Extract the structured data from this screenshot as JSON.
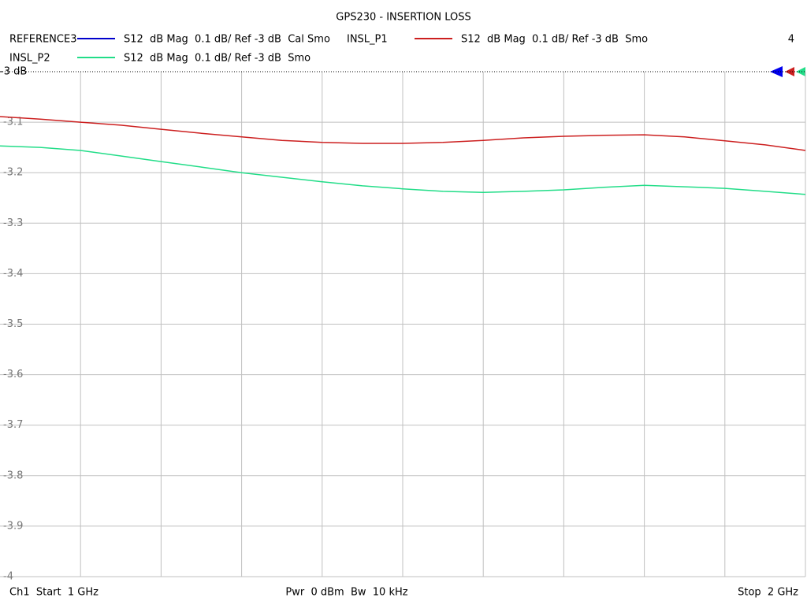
{
  "chart_data": {
    "type": "line",
    "title": "GPS230 - INSERTION LOSS",
    "x": [
      1.0,
      1.05,
      1.1,
      1.15,
      1.2,
      1.25,
      1.3,
      1.35,
      1.4,
      1.45,
      1.5,
      1.55,
      1.6,
      1.65,
      1.7,
      1.75,
      1.8,
      1.85,
      1.9,
      1.95,
      2.0
    ],
    "xlim": [
      1,
      2
    ],
    "xticks": [
      1.1,
      1.2,
      1.3,
      1.4,
      1.5,
      1.6,
      1.7,
      1.8,
      1.9,
      2
    ],
    "ylim": [
      -4,
      -3
    ],
    "yticks": [
      {
        "value": -3,
        "label": "-3 dB"
      },
      -3.1,
      -3.2,
      -3.3,
      -3.4,
      -3.5,
      -3.6,
      -3.7,
      -3.8,
      -3.9,
      -4
    ],
    "grid": true,
    "channel_number": "4",
    "series": [
      {
        "name": "REFERENCE3",
        "description": "S12  dB Mag  0.1 dB/ Ref -3 dB  Cal Smo",
        "color": "#0000cc",
        "values": [
          null,
          null,
          null,
          null,
          null,
          null,
          null,
          null,
          null,
          null,
          null,
          null,
          null,
          null,
          null,
          null,
          null,
          null,
          null,
          null,
          null
        ]
      },
      {
        "name": "INSL_P1",
        "description": "S12  dB Mag  0.1 dB/ Ref -3 dB  Smo",
        "color": "#cc1f1f",
        "values": [
          -3.089,
          -3.094,
          -3.1,
          -3.106,
          -3.114,
          -3.122,
          -3.129,
          -3.136,
          -3.14,
          -3.142,
          -3.142,
          -3.14,
          -3.136,
          -3.131,
          -3.128,
          -3.126,
          -3.125,
          -3.129,
          -3.137,
          -3.145,
          -3.156
        ]
      },
      {
        "name": "INSL_P2",
        "description": "S12  dB Mag  0.1 dB/ Ref -3 dB  Smo",
        "color": "#22dd88",
        "values": [
          -3.147,
          -3.15,
          -3.156,
          -3.167,
          -3.178,
          -3.189,
          -3.2,
          -3.209,
          -3.218,
          -3.226,
          -3.232,
          -3.237,
          -3.239,
          -3.237,
          -3.234,
          -3.229,
          -3.225,
          -3.228,
          -3.231,
          -3.237,
          -3.243
        ]
      }
    ],
    "footer": {
      "left": "Ch1  Start  1 GHz",
      "center": "Pwr  0 dBm  Bw  10 kHz",
      "right": "Stop  2 GHz"
    }
  }
}
